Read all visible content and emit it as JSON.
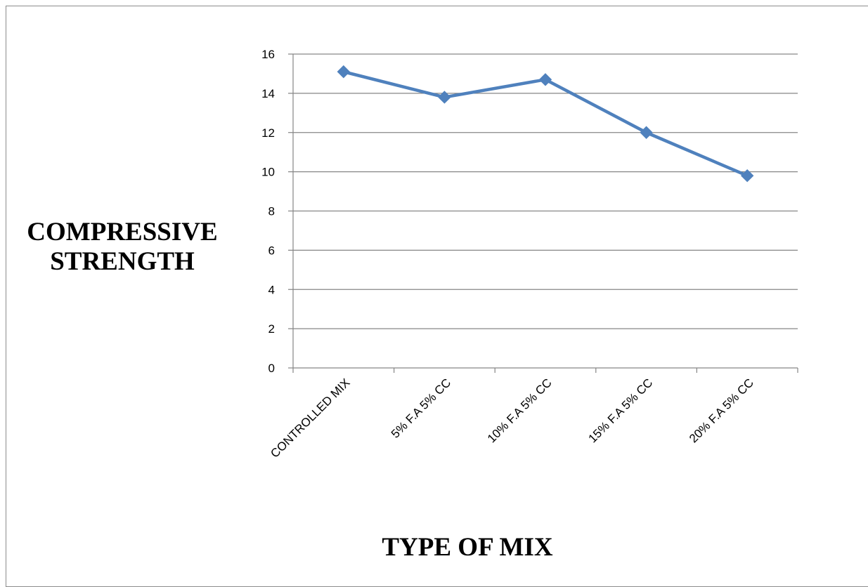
{
  "chart_data": {
    "type": "line",
    "categories": [
      "CONTROLLED MIX",
      "5% F.A 5% CC",
      "10% F.A 5% CC",
      "15% F.A 5% CC",
      "20% F.A 5% CC"
    ],
    "values": [
      15.1,
      13.8,
      14.7,
      12.0,
      9.8
    ],
    "ylabel_lines": [
      "COMPRESSIVE",
      "STRENGTH"
    ],
    "xlabel": "TYPE OF MIX",
    "ylim": [
      0,
      16
    ],
    "yticks": [
      0,
      2,
      4,
      6,
      8,
      10,
      12,
      14,
      16
    ],
    "grid": "horizontal",
    "marker": "diamond",
    "line_color": "#4f81bd",
    "grid_color": "#868686"
  }
}
